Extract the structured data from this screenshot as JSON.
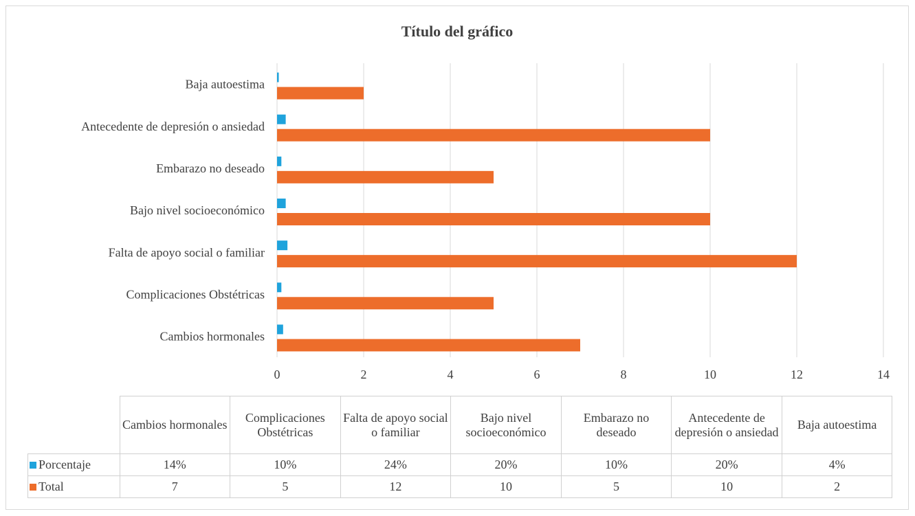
{
  "chart_data": {
    "type": "bar",
    "orientation": "horizontal",
    "title": "Título del gráfico",
    "categories": [
      "Cambios hormonales",
      "Complicaciones Obstétricas",
      "Falta de apoyo social o familiar",
      "Bajo nivel socioeconómico",
      "Embarazo no deseado",
      "Antecedente de depresión o ansiedad",
      "Baja autoestima"
    ],
    "series": [
      {
        "name": "Porcentaje",
        "color": "#1fa3dc",
        "values": [
          0.14,
          0.1,
          0.24,
          0.2,
          0.1,
          0.2,
          0.04
        ],
        "value_labels": [
          "14%",
          "10%",
          "24%",
          "20%",
          "10%",
          "20%",
          "4%"
        ]
      },
      {
        "name": "Total",
        "color": "#ed6d2b",
        "values": [
          7,
          5,
          12,
          10,
          5,
          10,
          2
        ]
      }
    ],
    "xlim": [
      0,
      14
    ],
    "xticks": [
      0,
      2,
      4,
      6,
      8,
      10,
      12,
      14
    ],
    "grid": true,
    "data_table": true
  }
}
